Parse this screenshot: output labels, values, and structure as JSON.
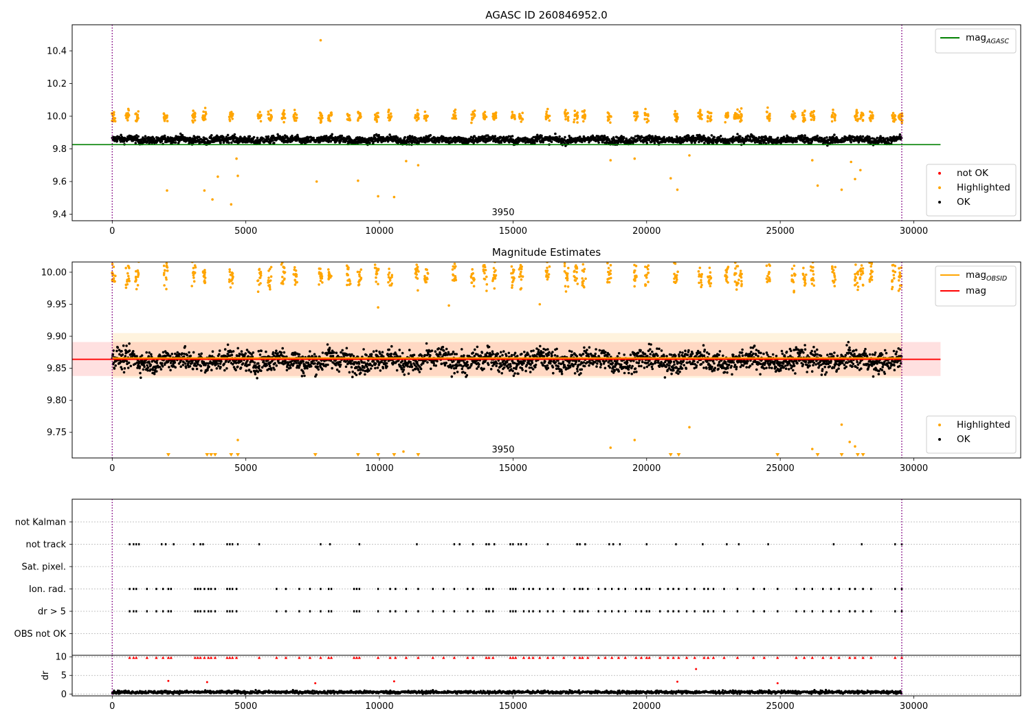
{
  "colors": {
    "ok": "#000000",
    "highlighted": "#ffa500",
    "not_ok": "#ff0000",
    "agasc_line": "#008000",
    "mag_line": "#ff0000",
    "obsid_line": "#ffa500",
    "obs_boundary": "#800080",
    "band_red": "#ff0000",
    "band_orange": "#ffa500"
  },
  "chart_data": [
    {
      "type": "scatter",
      "title": "AGASC ID 260846952.0",
      "annotation": "3950",
      "xlim": [
        -1500,
        34000
      ],
      "ylim": [
        9.36,
        10.56
      ],
      "xticks": [
        0,
        5000,
        10000,
        15000,
        20000,
        25000,
        30000
      ],
      "yticks": [
        9.4,
        9.6,
        9.8,
        10.0,
        10.2,
        10.4
      ],
      "xtick_labels": [
        "0",
        "5000",
        "10000",
        "15000",
        "20000",
        "25000",
        "30000"
      ],
      "ytick_labels": [
        "9.4",
        "9.6",
        "9.8",
        "10.0",
        "10.2",
        "10.4"
      ],
      "vlines": [
        0,
        29550
      ],
      "hline": {
        "name": "mag_AGASC",
        "y": 9.826,
        "x": [
          -1500,
          31000
        ]
      },
      "legends": {
        "upper_right": [
          {
            "label": "mag",
            "sub": "AGASC"
          }
        ],
        "lower_right": [
          "not OK",
          "Highlighted",
          "OK"
        ]
      },
      "series": [
        {
          "name": "OK",
          "kind": "band",
          "x_range": [
            0,
            29550
          ],
          "center": 9.856,
          "spread": 0.04
        },
        {
          "name": "Highlighted",
          "kind": "clusters",
          "centers": [
            60,
            570,
            920,
            2000,
            3050,
            3450,
            4450,
            5500,
            5900,
            6400,
            6850,
            7800,
            8150,
            8850,
            9250,
            9900,
            10400,
            11400,
            11750,
            12800,
            13500,
            13950,
            14300,
            15000,
            15300,
            16300,
            17000,
            17350,
            17650,
            18600,
            19600,
            20000,
            21100,
            22000,
            22350,
            23000,
            23350,
            23500,
            24550,
            25500,
            25900,
            26200,
            27000,
            27850,
            28050,
            28400,
            29250,
            29500
          ],
          "center": 10.0,
          "spread": 0.035
        },
        {
          "name": "Highlighted",
          "kind": "points",
          "x": [
            2050,
            3450,
            3750,
            3950,
            4450,
            4650,
            4700,
            7650,
            7800,
            9200,
            9950,
            10550,
            11000,
            11450,
            18650,
            19550,
            20900,
            21150,
            21600,
            26200,
            26400,
            27300,
            27650,
            27800,
            28000
          ],
          "y": [
            9.545,
            9.545,
            9.49,
            9.63,
            9.46,
            9.74,
            9.635,
            9.6,
            10.465,
            9.605,
            9.51,
            9.505,
            9.725,
            9.7,
            9.73,
            9.74,
            9.62,
            9.55,
            9.76,
            9.73,
            9.575,
            9.55,
            9.72,
            9.615,
            9.67
          ]
        }
      ]
    },
    {
      "type": "scatter",
      "title": "Magnitude Estimates",
      "annotation": "3950",
      "xlim": [
        -1500,
        34000
      ],
      "ylim": [
        9.71,
        10.016
      ],
      "xticks": [
        0,
        5000,
        10000,
        15000,
        20000,
        25000,
        30000
      ],
      "yticks": [
        9.75,
        9.8,
        9.85,
        9.9,
        9.95,
        10.0
      ],
      "xtick_labels": [
        "0",
        "5000",
        "10000",
        "15000",
        "20000",
        "25000",
        "30000"
      ],
      "ytick_labels": [
        "9.75",
        "9.80",
        "9.85",
        "9.90",
        "9.95",
        "10.00"
      ],
      "vlines": [
        0,
        29550
      ],
      "mag_line": {
        "name": "mag",
        "y": 9.864,
        "x": [
          -1500,
          31000
        ]
      },
      "mag_band": {
        "y": [
          9.838,
          9.891
        ],
        "x": [
          -1500,
          31000
        ]
      },
      "obsid_line": {
        "name": "mag_OBSID",
        "y": 9.866,
        "x": [
          0,
          29550
        ]
      },
      "obsid_band": {
        "y": [
          9.835,
          9.905
        ],
        "x": [
          0,
          29550
        ]
      },
      "legends": {
        "upper_right": [
          {
            "label": "mag",
            "sub": "OBSID"
          },
          {
            "label": "mag",
            "sub": ""
          }
        ],
        "lower_right": [
          "Highlighted",
          "OK"
        ]
      },
      "series": [
        {
          "name": "OK",
          "kind": "band",
          "x_range": [
            0,
            29550
          ],
          "center": 9.862,
          "spread": 0.03
        },
        {
          "name": "Highlighted",
          "kind": "clusters",
          "centers": [
            60,
            570,
            920,
            2000,
            3050,
            3450,
            4450,
            5500,
            5900,
            6400,
            6850,
            7800,
            8150,
            8850,
            9250,
            9900,
            10400,
            11400,
            11750,
            12800,
            13500,
            13950,
            14300,
            15000,
            15300,
            16300,
            17000,
            17350,
            17650,
            18600,
            19600,
            20000,
            21100,
            22000,
            22350,
            23000,
            23350,
            23500,
            24550,
            25500,
            25900,
            26200,
            27000,
            27850,
            28050,
            28400,
            29250,
            29500
          ],
          "center": 9.995,
          "spread": 0.02
        },
        {
          "name": "Highlighted",
          "kind": "points",
          "x": [
            4700,
            9950,
            10900,
            12600,
            16000,
            18650,
            19550,
            21600,
            26200,
            27300,
            27600,
            27800
          ],
          "y": [
            9.738,
            9.945,
            9.72,
            9.948,
            9.95,
            9.726,
            9.738,
            9.758,
            9.724,
            9.762,
            9.735,
            9.728
          ]
        },
        {
          "name": "Highlighted (below range)",
          "kind": "triangles",
          "x": [
            2100,
            3550,
            3700,
            3850,
            4450,
            4700,
            7600,
            9200,
            9950,
            10550,
            11450,
            20900,
            21200,
            24900,
            26400,
            27300,
            27900,
            28100
          ],
          "y_at": "bottom"
        }
      ]
    },
    {
      "type": "scatter",
      "title": "",
      "xlim": [
        -1500,
        34000
      ],
      "xticks": [
        0,
        5000,
        10000,
        15000,
        20000,
        25000,
        30000
      ],
      "xtick_labels": [
        "0",
        "5000",
        "10000",
        "15000",
        "20000",
        "25000",
        "30000"
      ],
      "vlines": [
        0,
        29550
      ],
      "flag_rows": [
        "not Kalman",
        "not track",
        "Sat. pixel.",
        "Ion. rad.",
        "dr > 5",
        "OBS not OK"
      ],
      "flag_events": {
        "not track": [
          650,
          800,
          900,
          1000,
          1850,
          2000,
          2300,
          3050,
          3300,
          3400,
          4300,
          4400,
          4500,
          4700,
          5500,
          7800,
          8150,
          9250,
          11400,
          12800,
          13000,
          13500,
          14000,
          14100,
          14300,
          14900,
          15000,
          15200,
          15300,
          15500,
          16300,
          17400,
          17500,
          17700,
          18600,
          18750,
          19000,
          20000,
          21100,
          22100,
          23000,
          23450,
          24550,
          27000,
          28050,
          29300,
          29550
        ],
        "Ion. rad.": [
          650,
          800,
          900,
          1300,
          1650,
          1900,
          2100,
          2200,
          3100,
          3200,
          3300,
          3450,
          3600,
          3700,
          3850,
          4300,
          4400,
          4500,
          4650,
          6150,
          6500,
          7000,
          7400,
          7800,
          8100,
          8200,
          9050,
          9150,
          9250,
          9950,
          10400,
          10600,
          11000,
          11450,
          12000,
          12400,
          12800,
          13300,
          13500,
          14000,
          14100,
          14250,
          14900,
          15000,
          15100,
          15400,
          15600,
          15750,
          16000,
          16300,
          16500,
          16900,
          17300,
          17500,
          17600,
          17800,
          18200,
          18450,
          18700,
          18950,
          19200,
          19600,
          19800,
          20000,
          20100,
          20500,
          20800,
          21000,
          21200,
          21500,
          21800,
          22150,
          22300,
          22500,
          22900,
          23400,
          24000,
          24400,
          24900,
          25600,
          25900,
          26200,
          26600,
          26900,
          27200,
          27600,
          27800,
          28100,
          28400,
          29300,
          29550
        ],
        "dr > 5": [
          650,
          800,
          900,
          1300,
          1650,
          1900,
          2100,
          2200,
          3100,
          3200,
          3300,
          3450,
          3600,
          3700,
          3850,
          4300,
          4400,
          4500,
          4650,
          6150,
          6500,
          7000,
          7400,
          7800,
          8100,
          8200,
          9050,
          9150,
          9250,
          9950,
          10400,
          10600,
          11000,
          11450,
          12000,
          12400,
          12800,
          13300,
          13500,
          14000,
          14100,
          14250,
          14900,
          15000,
          15100,
          15400,
          15600,
          15750,
          16000,
          16300,
          16500,
          16900,
          17300,
          17500,
          17600,
          17800,
          18200,
          18450,
          18700,
          18950,
          19200,
          19600,
          19800,
          20000,
          20100,
          20500,
          20800,
          21000,
          21200,
          21500,
          21800,
          22150,
          22300,
          22500,
          22900,
          23400,
          24000,
          24400,
          24900,
          25600,
          25900,
          26200,
          26600,
          26900,
          27200,
          27600,
          27800,
          28100,
          28400,
          29300,
          29550
        ]
      },
      "dr_panel": {
        "ylabel": "dr",
        "ylim": [
          -0.5,
          10.4
        ],
        "yticks": [
          0,
          5,
          10
        ],
        "ytick_labels": [
          "0",
          "5",
          "10"
        ],
        "ok_band": {
          "center": 0.5,
          "spread": 0.4
        },
        "not_ok_clipped": {
          "y": 9.8,
          "x": [
            650,
            800,
            900,
            1300,
            1650,
            1900,
            2100,
            2200,
            3100,
            3200,
            3300,
            3450,
            3600,
            3700,
            3850,
            4300,
            4400,
            4500,
            4650,
            5500,
            6150,
            6500,
            7000,
            7400,
            7800,
            8100,
            8200,
            9050,
            9150,
            9250,
            9950,
            10400,
            10600,
            11000,
            11450,
            12000,
            12400,
            12800,
            13300,
            13500,
            14000,
            14100,
            14250,
            14900,
            15000,
            15100,
            15400,
            15600,
            15750,
            16000,
            16300,
            16500,
            16900,
            17300,
            17500,
            17600,
            17800,
            18200,
            18450,
            18700,
            18950,
            19200,
            19600,
            19800,
            20000,
            20100,
            20500,
            20800,
            21000,
            21200,
            21500,
            21800,
            22150,
            22300,
            22500,
            22900,
            23400,
            24000,
            24400,
            24900,
            25600,
            25900,
            26200,
            26600,
            26900,
            27200,
            27600,
            27800,
            28100,
            28400,
            29300,
            29550
          ]
        },
        "not_ok_points": {
          "x": [
            2100,
            3550,
            7600,
            10550,
            21150,
            21850,
            24900
          ],
          "y": [
            3.5,
            3.2,
            2.9,
            3.4,
            3.3,
            6.7,
            2.9
          ]
        }
      }
    }
  ]
}
